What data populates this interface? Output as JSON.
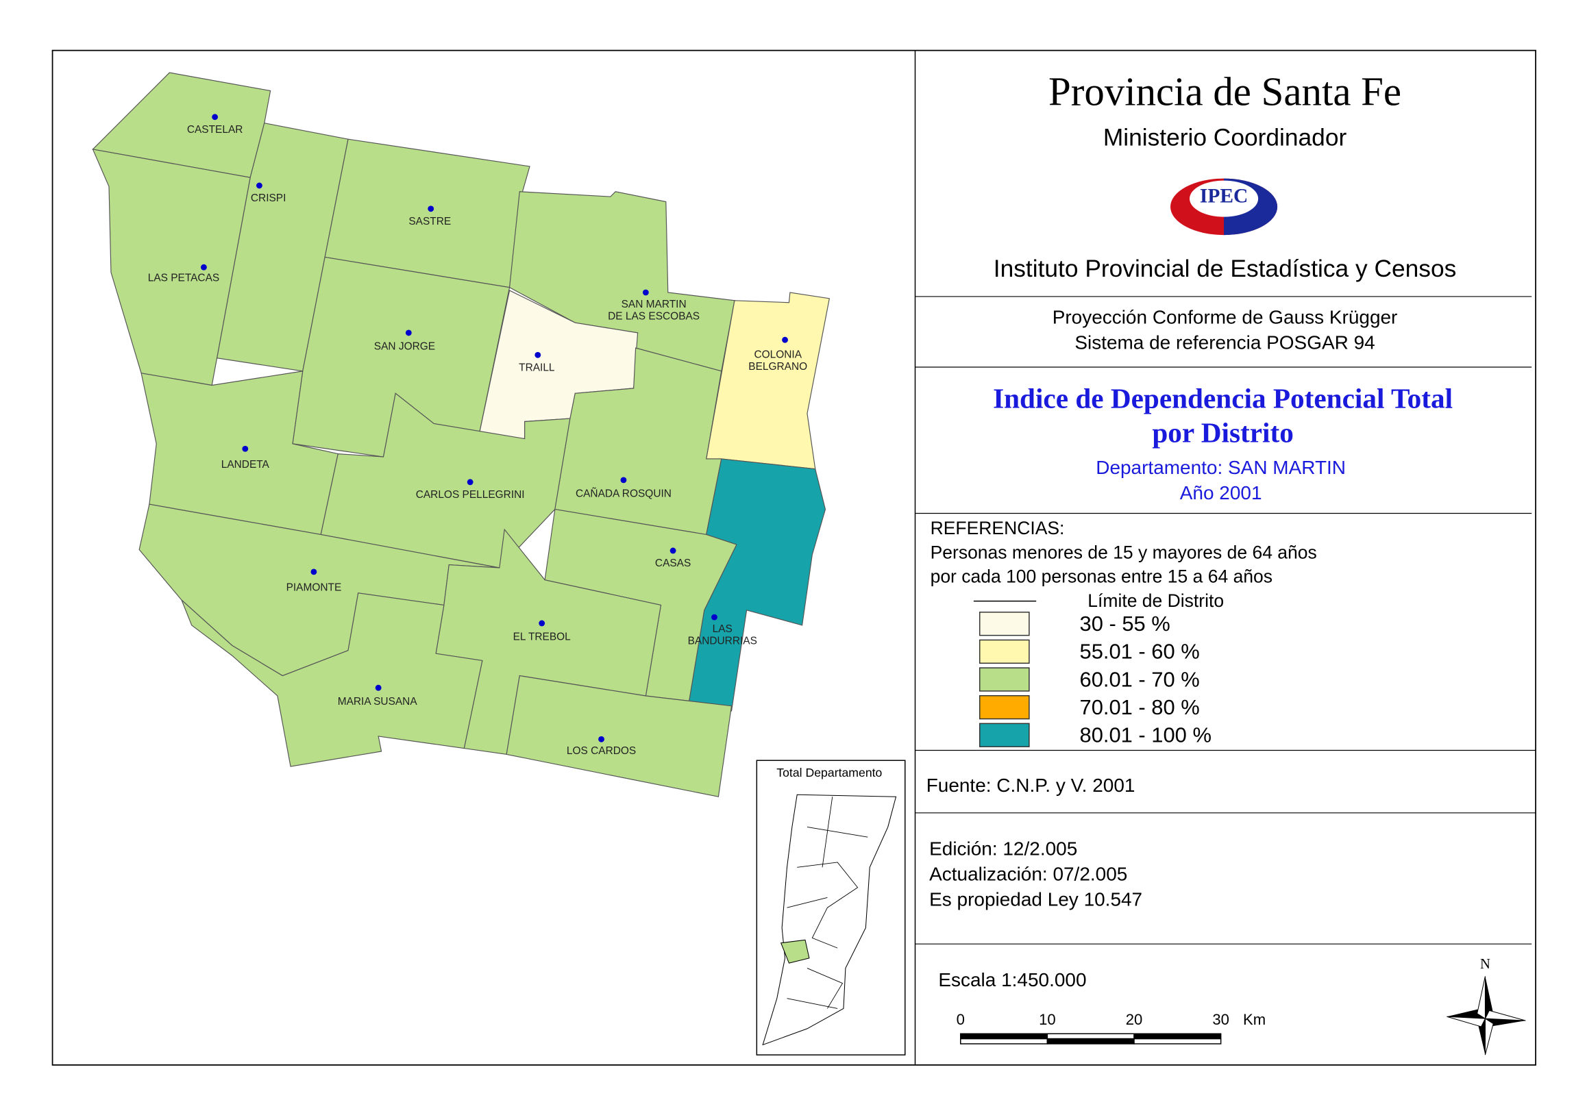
{
  "header": {
    "title": "Provincia de Santa Fe",
    "subtitle": "Ministerio Coordinador",
    "logo": "IPEC",
    "institute": "Instituto Provincial de Estadística y Censos"
  },
  "projection": [
    "Proyección Conforme de Gauss Krügger",
    "Sistema de referencia POSGAR 94"
  ],
  "map_title": [
    "Indice de Dependencia Potencial Total",
    "por Distrito"
  ],
  "department": "Departamento:  SAN MARTIN",
  "year": "Año 2001",
  "legend": {
    "title": "REFERENCIAS:",
    "description": [
      "Personas menores de 15 y mayores de 64 años",
      "por cada 100 personas entre 15 a 64 años"
    ],
    "boundary": "Límite de Distrito",
    "classes": [
      {
        "label": "30 - 55 %",
        "color": "#fdfae8"
      },
      {
        "label": "55.01 - 60 %",
        "color": "#fff8ae"
      },
      {
        "label": "60.01 - 70 %",
        "color": "#b8de8a"
      },
      {
        "label": "70.01 - 80 %",
        "color": "#ffab00"
      },
      {
        "label": "80.01 - 100 %",
        "color": "#16a3aa"
      }
    ]
  },
  "source": "Fuente:  C.N.P. y V. 2001",
  "edition": [
    "Edición:  12/2.005",
    "Actualización:  07/2.005",
    "Es propiedad Ley 10.547"
  ],
  "scale": {
    "text": "Escala 1:450.000",
    "ticks": [
      "0",
      "10",
      "20",
      "30"
    ],
    "unit": "Km"
  },
  "north": "N",
  "inset_title": "Total Departamento",
  "districts": [
    {
      "name": [
        "CASTELAR"
      ],
      "class": 2
    },
    {
      "name": [
        "CRISPI"
      ],
      "class": 2
    },
    {
      "name": [
        "LAS PETACAS"
      ],
      "class": 2
    },
    {
      "name": [
        "SASTRE"
      ],
      "class": 2
    },
    {
      "name": [
        "SAN JORGE"
      ],
      "class": 2
    },
    {
      "name": [
        "SAN MARTIN",
        "DE LAS ESCOBAS"
      ],
      "class": 2
    },
    {
      "name": [
        "TRAILL"
      ],
      "class": 0
    },
    {
      "name": [
        "COLONIA",
        "BELGRANO"
      ],
      "class": 1
    },
    {
      "name": [
        "LANDETA"
      ],
      "class": 2
    },
    {
      "name": [
        "CARLOS PELLEGRINI"
      ],
      "class": 2
    },
    {
      "name": [
        "CAÑADA ROSQUIN"
      ],
      "class": 2
    },
    {
      "name": [
        "LAS",
        "BANDURRIAS"
      ],
      "class": 4
    },
    {
      "name": [
        "CASAS"
      ],
      "class": 2
    },
    {
      "name": [
        "PIAMONTE"
      ],
      "class": 2
    },
    {
      "name": [
        "EL TREBOL"
      ],
      "class": 2
    },
    {
      "name": [
        "MARIA SUSANA"
      ],
      "class": 2
    },
    {
      "name": [
        "LOS CARDOS"
      ],
      "class": 2
    }
  ]
}
